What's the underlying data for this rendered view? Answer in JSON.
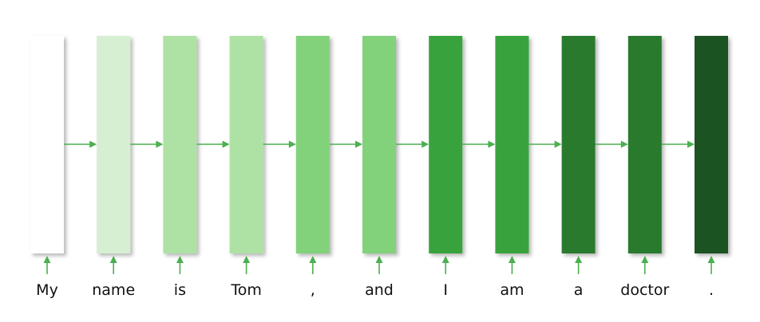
{
  "diagram": {
    "arrow_color": "#4caf50",
    "tokens": [
      {
        "word": "My",
        "color": "#ffffff"
      },
      {
        "word": "name",
        "color": "#d6efd3"
      },
      {
        "word": "is",
        "color": "#aee2a4"
      },
      {
        "word": "Tom",
        "color": "#aee2a4"
      },
      {
        "word": ",",
        "color": "#82d27c"
      },
      {
        "word": "and",
        "color": "#82d27c"
      },
      {
        "word": "I",
        "color": "#37a33c"
      },
      {
        "word": "am",
        "color": "#37a33c"
      },
      {
        "word": "a",
        "color": "#2a7a2f"
      },
      {
        "word": "doctor",
        "color": "#2a7a2f"
      },
      {
        "word": ".",
        "color": "#1d5221"
      }
    ]
  }
}
